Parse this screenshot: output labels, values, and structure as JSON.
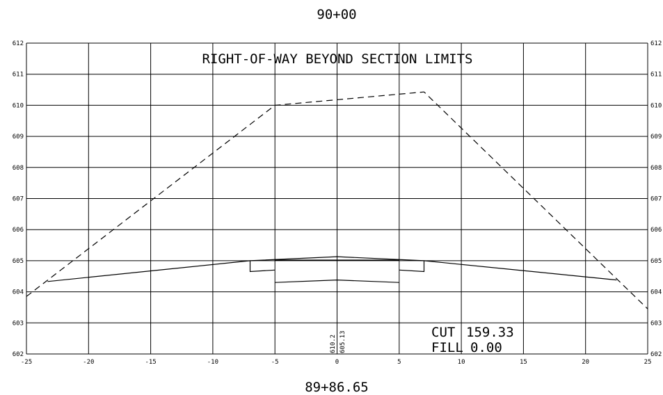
{
  "station_top": "90+00",
  "station_bottom": "89+86.65",
  "note": "RIGHT-OF-WAY BEYOND SECTION LIMITS",
  "cut_label": "CUT",
  "cut_value": "159.33",
  "fill_label": "FILL",
  "fill_value": "0.00",
  "centerline_elevations": [
    "610.2",
    "605.13"
  ],
  "axis": {
    "x_ticks": [
      -25,
      -20,
      -15,
      -10,
      -5,
      0,
      5,
      10,
      15,
      20,
      25
    ],
    "y_ticks": [
      602,
      603,
      604,
      605,
      606,
      607,
      608,
      609,
      610,
      611,
      612
    ],
    "x_range": [
      -25,
      25
    ],
    "y_range": [
      602,
      612
    ],
    "x_tick_labels": [
      "-25",
      "-20",
      "-15",
      "-10",
      "-5",
      "0",
      "5",
      "10",
      "15",
      "20",
      "25"
    ],
    "y_tick_labels": [
      "602",
      "603",
      "604",
      "605",
      "606",
      "607",
      "608",
      "609",
      "610",
      "611",
      "612"
    ]
  },
  "profiles": {
    "existing_ground": [
      [
        -25,
        603.85
      ],
      [
        -5,
        610.0
      ],
      [
        7,
        610.43
      ],
      [
        25,
        603.45
      ]
    ],
    "proposed_top": [
      [
        -23.3,
        604.33
      ],
      [
        -7,
        605.0
      ],
      [
        0,
        605.13
      ],
      [
        7,
        605.0
      ],
      [
        22.5,
        604.38
      ]
    ],
    "left_curb": [
      [
        -7,
        605.0
      ],
      [
        -7,
        604.65
      ],
      [
        -5,
        604.7
      ]
    ],
    "right_curb": [
      [
        7,
        605.0
      ],
      [
        7,
        604.65
      ],
      [
        5,
        604.7
      ]
    ],
    "subgrade": [
      [
        -5,
        604.3
      ],
      [
        0,
        604.38
      ],
      [
        5,
        604.3
      ]
    ],
    "gutter_line": [
      [
        -5,
        605.02
      ],
      [
        5,
        605.02
      ]
    ]
  }
}
